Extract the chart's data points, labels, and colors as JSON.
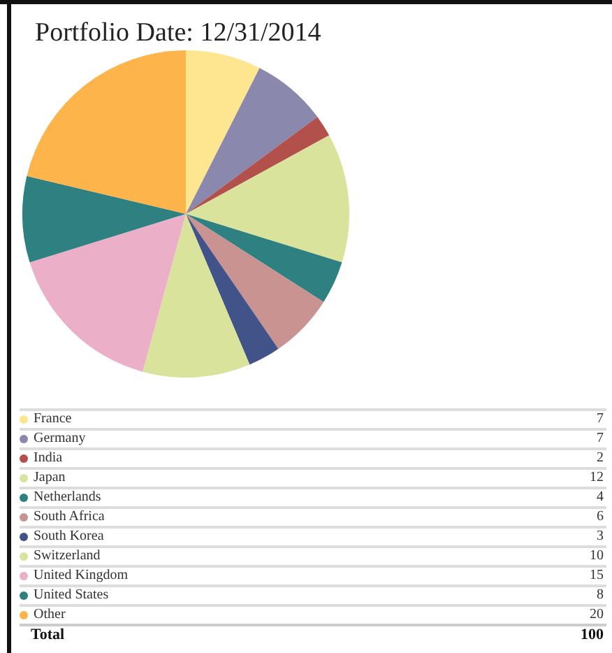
{
  "chart_data": {
    "type": "pie",
    "title": "Portfolio Date: 12/31/2014",
    "categories": [
      "France",
      "Germany",
      "India",
      "Japan",
      "Netherlands",
      "South Africa",
      "South Korea",
      "Switzerland",
      "United Kingdom",
      "United States",
      "Other"
    ],
    "values": [
      7,
      7,
      2,
      12,
      4,
      6,
      3,
      10,
      15,
      8,
      20
    ],
    "data_labels": true,
    "colors": [
      "#fde68f",
      "#8a88ac",
      "#b2504b",
      "#d9e39c",
      "#2f8080",
      "#c89390",
      "#42538a",
      "#d9e39c",
      "#ebafc8",
      "#2f8080",
      "#fdb44b"
    ],
    "legend": "bottom",
    "annotations": [
      "Total",
      "100"
    ]
  }
}
